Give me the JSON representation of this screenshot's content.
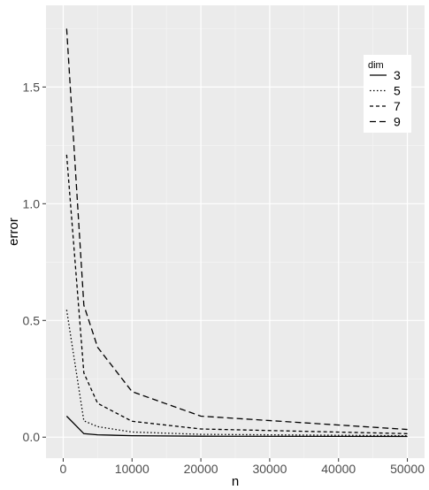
{
  "chart_data": {
    "type": "line",
    "title": "",
    "xlabel": "n",
    "ylabel": "error",
    "xlim": [
      -2500,
      52500
    ],
    "ylim": [
      -0.09,
      1.85
    ],
    "x_ticks": [
      0,
      10000,
      20000,
      30000,
      40000,
      50000
    ],
    "y_ticks": [
      0.0,
      0.5,
      1.0,
      1.5
    ],
    "x_tick_labels": [
      "0",
      "10000",
      "20000",
      "30000",
      "40000",
      "50000"
    ],
    "y_tick_labels": [
      "0.0",
      "0.5",
      "1.0",
      "1.5"
    ],
    "grid": true,
    "legend": {
      "title": "dim",
      "position": "top-right"
    },
    "x": [
      500,
      3000,
      5000,
      10000,
      20000,
      50000
    ],
    "series": [
      {
        "name": "3",
        "dash": "solid",
        "values": [
          0.09,
          0.015,
          0.01,
          0.006,
          0.004,
          0.003
        ]
      },
      {
        "name": "5",
        "dash": "dotted",
        "values": [
          0.545,
          0.07,
          0.045,
          0.022,
          0.012,
          0.006
        ]
      },
      {
        "name": "7",
        "dash": "dashed",
        "values": [
          1.21,
          0.275,
          0.145,
          0.068,
          0.035,
          0.015
        ]
      },
      {
        "name": "9",
        "dash": "longdash",
        "values": [
          1.75,
          0.565,
          0.385,
          0.195,
          0.09,
          0.033
        ]
      }
    ]
  }
}
